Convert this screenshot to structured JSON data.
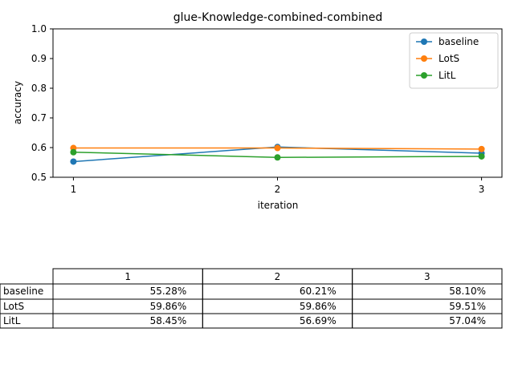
{
  "chart_data": {
    "type": "line",
    "title": "glue-Knowledge-combined-combined",
    "xlabel": "iteration",
    "ylabel": "accuracy",
    "x": [
      1,
      2,
      3
    ],
    "xticks": [
      "1",
      "2",
      "3"
    ],
    "ylim": [
      0.5,
      1.0
    ],
    "yticks": [
      "0.5",
      "0.6",
      "0.7",
      "0.8",
      "0.9",
      "1.0"
    ],
    "grid": false,
    "legend_position": "top-right",
    "series": [
      {
        "name": "baseline",
        "color": "#1f77b4",
        "values": [
          0.5528,
          0.6021,
          0.581
        ]
      },
      {
        "name": "LotS",
        "color": "#ff7f0e",
        "values": [
          0.5986,
          0.5986,
          0.5951
        ]
      },
      {
        "name": "LitL",
        "color": "#2ca02c",
        "values": [
          0.5845,
          0.5669,
          0.5704
        ]
      }
    ],
    "table": {
      "columns": [
        "1",
        "2",
        "3"
      ],
      "rows": [
        {
          "label": "baseline",
          "cells": [
            "55.28%",
            "60.21%",
            "58.10%"
          ]
        },
        {
          "label": "LotS",
          "cells": [
            "59.86%",
            "59.86%",
            "59.51%"
          ]
        },
        {
          "label": "LitL",
          "cells": [
            "58.45%",
            "56.69%",
            "57.04%"
          ]
        }
      ]
    }
  }
}
